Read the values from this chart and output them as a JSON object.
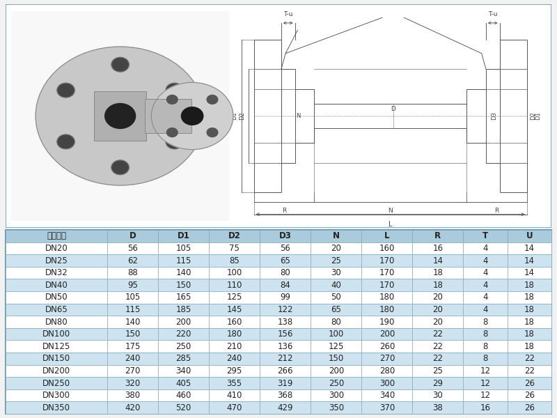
{
  "headers": [
    "规格型号",
    "D",
    "D1",
    "D2",
    "D3",
    "N",
    "L",
    "R",
    "T",
    "U"
  ],
  "rows": [
    [
      "DN20",
      56,
      105,
      75,
      56,
      20,
      160,
      16,
      4,
      14
    ],
    [
      "DN25",
      62,
      115,
      85,
      65,
      25,
      170,
      14,
      4,
      14
    ],
    [
      "DN32",
      88,
      140,
      100,
      80,
      30,
      170,
      18,
      4,
      14
    ],
    [
      "DN40",
      95,
      150,
      110,
      84,
      40,
      170,
      18,
      4,
      18
    ],
    [
      "DN50",
      105,
      165,
      125,
      99,
      50,
      180,
      20,
      4,
      18
    ],
    [
      "DN65",
      115,
      185,
      145,
      122,
      65,
      180,
      20,
      4,
      18
    ],
    [
      "DN80",
      140,
      200,
      160,
      138,
      80,
      190,
      20,
      8,
      18
    ],
    [
      "DN100",
      150,
      220,
      180,
      156,
      100,
      200,
      22,
      8,
      18
    ],
    [
      "DN125",
      175,
      250,
      210,
      136,
      125,
      260,
      22,
      8,
      18
    ],
    [
      "DN150",
      240,
      285,
      240,
      212,
      150,
      270,
      22,
      8,
      22
    ],
    [
      "DN200",
      270,
      340,
      295,
      266,
      200,
      280,
      25,
      12,
      22
    ],
    [
      "DN250",
      320,
      405,
      355,
      319,
      250,
      300,
      29,
      12,
      26
    ],
    [
      "DN300",
      380,
      460,
      410,
      368,
      300,
      340,
      30,
      12,
      26
    ],
    [
      "DN350",
      420,
      520,
      470,
      429,
      350,
      370,
      38,
      16,
      26
    ]
  ],
  "header_bg": "#aacbdb",
  "row_bg_odd": "#cde4f0",
  "row_bg_even": "#ffffff",
  "border_color": "#88aabb",
  "header_font_size": 8.5,
  "row_font_size": 8.5,
  "text_color": "#222222",
  "outer_border_color": "#6699aa",
  "bg_color": "#f2f2f2",
  "schematic_line_color": "#555555",
  "dim_line_color": "#444444",
  "col_widths": [
    1.5,
    0.75,
    0.75,
    0.75,
    0.75,
    0.75,
    0.75,
    0.75,
    0.65,
    0.65
  ]
}
